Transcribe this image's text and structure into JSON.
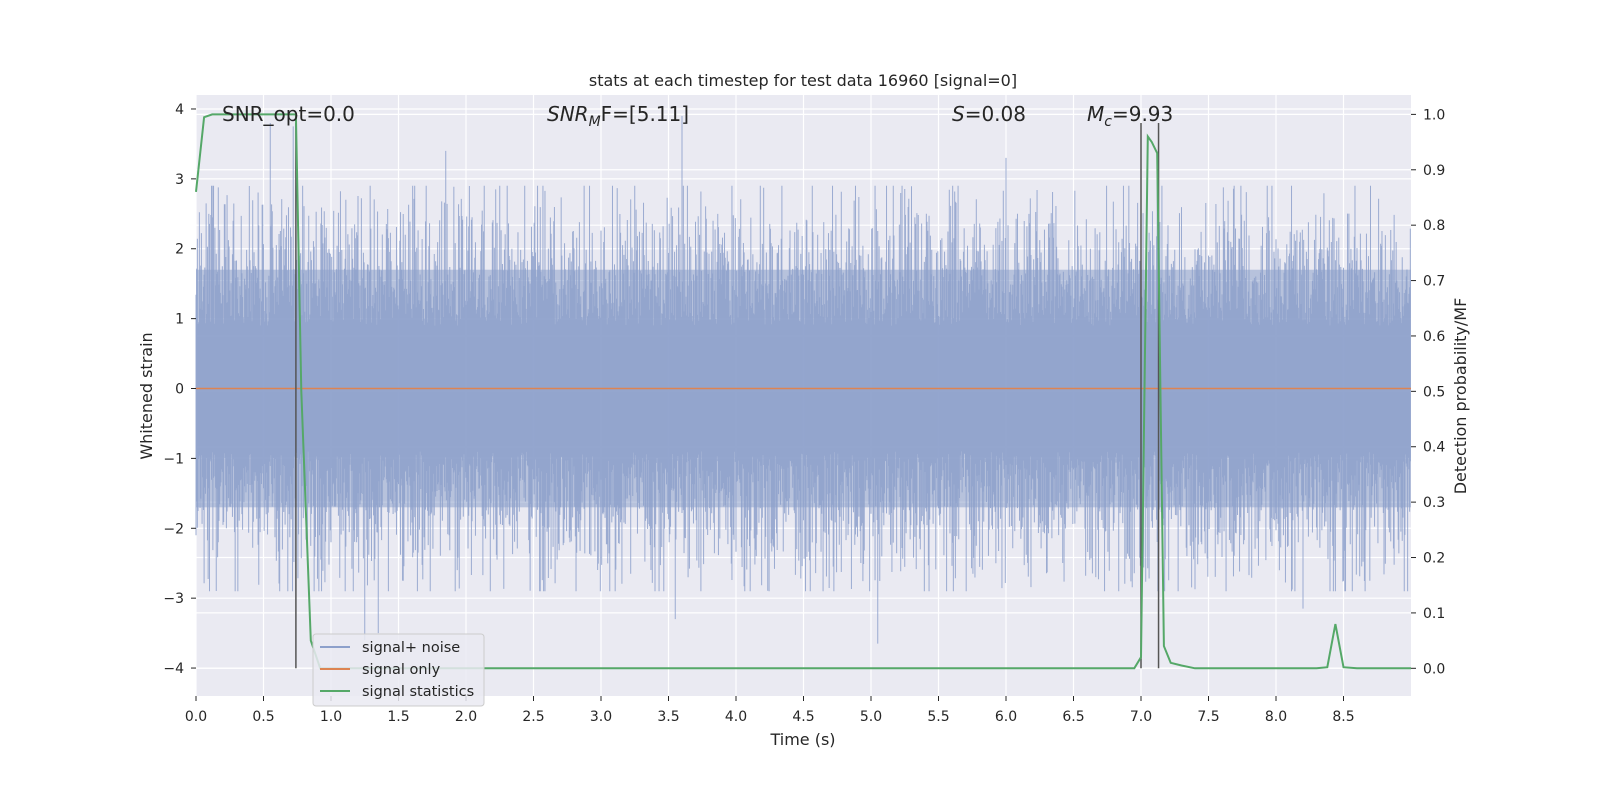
{
  "chart_data": {
    "type": "line",
    "title": "stats at each timestep for test data 16960 [signal=0]",
    "xlabel": "Time (s)",
    "ylabel_left": "Whitened strain",
    "ylabel_right": "Detection probability/MF",
    "xlim": [
      0.0,
      9.0
    ],
    "ylim_left": [
      -4.4,
      4.2
    ],
    "ylim_right": [
      -0.05,
      1.035
    ],
    "x_ticks": [
      "0.0",
      "0.5",
      "1.0",
      "1.5",
      "2.0",
      "2.5",
      "3.0",
      "3.5",
      "4.0",
      "4.5",
      "5.0",
      "5.5",
      "6.0",
      "6.5",
      "7.0",
      "7.5",
      "8.0",
      "8.5"
    ],
    "y_ticks_left": [
      "−4",
      "−3",
      "−2",
      "−1",
      "0",
      "1",
      "2",
      "3",
      "4"
    ],
    "y_ticks_right": [
      "0.0",
      "0.1",
      "0.2",
      "0.3",
      "0.4",
      "0.5",
      "0.6",
      "0.7",
      "0.8",
      "0.9",
      "1.0"
    ],
    "grid": true,
    "legend_placement": "lower-left",
    "annotations": {
      "snr_opt": "SNR_opt=0.0",
      "snr_mf_prefix": "SNR",
      "snr_mf_sub": "M",
      "snr_mf_suffix": "F=[5.11]",
      "s_italic": "S",
      "s_value": "=0.08",
      "mc_base": "M",
      "mc_sub": "c",
      "mc_value": "=9.93"
    },
    "vertical_markers": [
      0.74,
      7.0,
      7.13
    ],
    "series": [
      {
        "name": "signal+ noise",
        "color": "#8da0cb",
        "kind": "noise",
        "x_range": [
          0.0,
          9.0
        ],
        "typical_band": [
          -1.7,
          1.7
        ],
        "extremes": [
          {
            "x": 0.55,
            "y": 3.8
          },
          {
            "x": 0.72,
            "y": 3.75
          },
          {
            "x": 1.85,
            "y": 3.4
          },
          {
            "x": 3.6,
            "y": 3.9
          },
          {
            "x": 5.05,
            "y": -3.65
          },
          {
            "x": 6.0,
            "y": 3.3
          },
          {
            "x": 7.12,
            "y": 3.25
          },
          {
            "x": 8.2,
            "y": -3.15
          },
          {
            "x": 1.25,
            "y": -3.6
          },
          {
            "x": 3.55,
            "y": -3.3
          },
          {
            "x": 1.35,
            "y": -3.5
          }
        ]
      },
      {
        "name": "signal only",
        "color": "#dd8452",
        "x": [
          0.0,
          9.0
        ],
        "y": [
          0.0,
          0.0
        ]
      },
      {
        "name": "signal statistics",
        "color": "#55a868",
        "axis": "right",
        "x": [
          0.0,
          0.06,
          0.12,
          0.3,
          0.5,
          0.6,
          0.7,
          0.74,
          0.78,
          0.85,
          0.92,
          1.0,
          2.0,
          3.0,
          4.0,
          5.0,
          6.0,
          6.95,
          7.0,
          7.05,
          7.08,
          7.12,
          7.17,
          7.22,
          7.3,
          7.4,
          8.0,
          8.3,
          8.38,
          8.44,
          8.5,
          8.6,
          9.0
        ],
        "y": [
          0.86,
          0.995,
          1.0,
          1.0,
          1.0,
          1.0,
          1.0,
          1.0,
          0.5,
          0.05,
          0.0,
          0.0,
          0.0,
          0.0,
          0.0,
          0.0,
          0.0,
          0.0,
          0.02,
          0.96,
          0.95,
          0.93,
          0.04,
          0.01,
          0.005,
          0.0,
          0.0,
          0.0,
          0.002,
          0.08,
          0.002,
          0.0,
          0.0
        ]
      }
    ]
  }
}
